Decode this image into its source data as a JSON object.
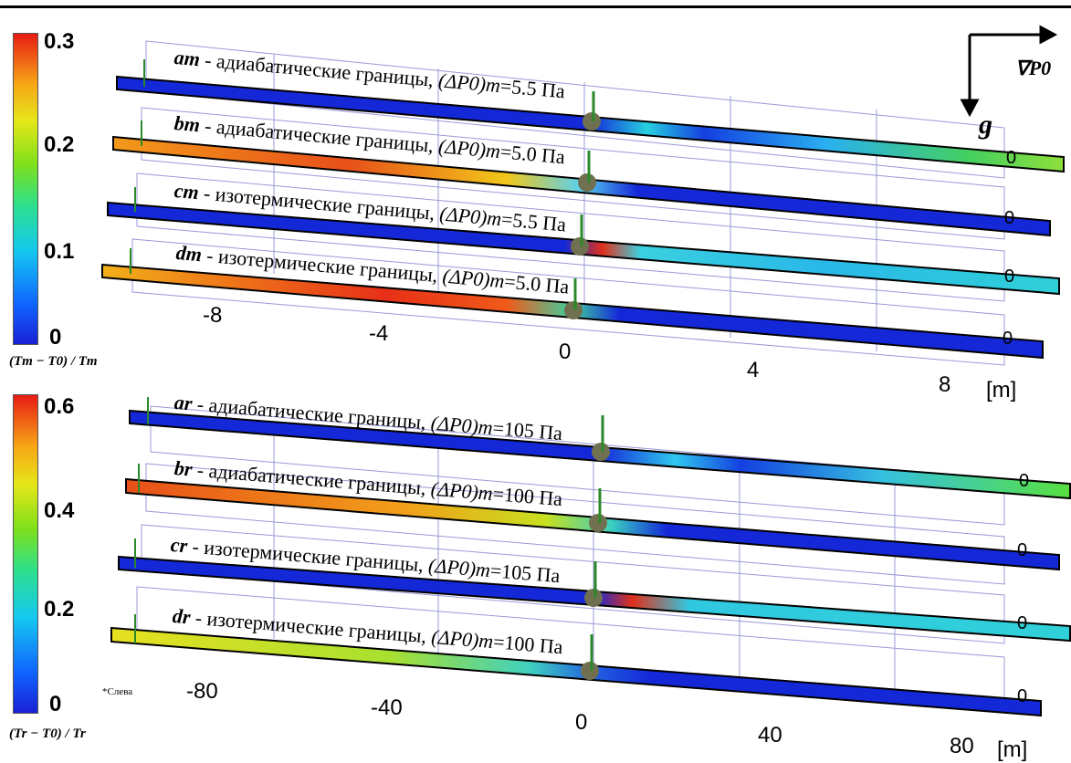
{
  "legend_top": {
    "max": "0.3",
    "mid2": "0.2",
    "mid1": "0.1",
    "min": "0",
    "label": "(Tm − T0) / Tm"
  },
  "legend_bottom": {
    "max": "0.6",
    "mid2": "0.4",
    "mid1": "0.2",
    "min": "0",
    "label": "(Tr − T0) / Tr"
  },
  "vectors": {
    "grad_label": "∇P0",
    "g_label": "g"
  },
  "top_rows": [
    {
      "id": "am",
      "text": " - адиабатические границы, ",
      "dp": "(ΔP0)m",
      "val": "=5.5 Па"
    },
    {
      "id": "bm",
      "text": " - адиабатические границы, ",
      "dp": "(ΔP0)m",
      "val": "=5.0 Па"
    },
    {
      "id": "cm",
      "text": " - изотермические границы, ",
      "dp": "(ΔP0)m",
      "val": "=5.5 Па"
    },
    {
      "id": "dm",
      "text": " - изотермические границы, ",
      "dp": "(ΔP0)m",
      "val": "=5.0 Па"
    }
  ],
  "bottom_rows": [
    {
      "id": "ar",
      "text": " - адиабатические границы, ",
      "dp": "(ΔP0)m",
      "val": "=105 Па"
    },
    {
      "id": "br",
      "text": " - адиабатические границы, ",
      "dp": "(ΔP0)m",
      "val": "=100 Па"
    },
    {
      "id": "cr",
      "text": " - изотермические границы, ",
      "dp": "(ΔP0)m",
      "val": "=105 Па"
    },
    {
      "id": "dr",
      "text": " - изотермические границы, ",
      "dp": "(ΔP0)m",
      "val": "=100 Па"
    }
  ],
  "top_axis": {
    "ticks": [
      "-8",
      "-4",
      "0",
      "4",
      "8"
    ],
    "unit": "[m]"
  },
  "bottom_axis": {
    "ticks": [
      "-80",
      "-40",
      "0",
      "40",
      "80"
    ],
    "unit": "[m]"
  },
  "view_note": "*Слева",
  "zero_label": "0"
}
